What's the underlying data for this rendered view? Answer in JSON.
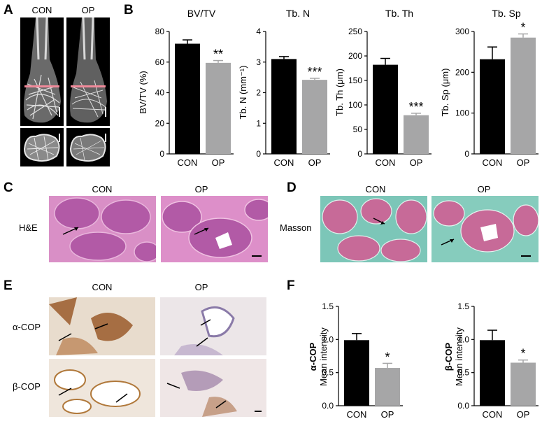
{
  "panels": {
    "A": "A",
    "B": "B",
    "C": "C",
    "D": "D",
    "E": "E",
    "F": "F"
  },
  "panel_a": {
    "col_con": "CON",
    "col_op": "OP"
  },
  "panel_c": {
    "col_con": "CON",
    "col_op": "OP",
    "row": "H&E"
  },
  "panel_d": {
    "col_con": "CON",
    "col_op": "OP",
    "row": "Masson"
  },
  "panel_e": {
    "col_con": "CON",
    "col_op": "OP",
    "row1": "α-COP",
    "row2": "β-COP"
  },
  "colors": {
    "con_bar": "#000000",
    "op_bar": "#a6a6a7",
    "he_pink": "#d98fc6",
    "he_tissue": "#b25aa6",
    "masson_bg": "#7cc6b8",
    "masson_tissue": "#c76a98",
    "ihc_bg": "#ece3d8",
    "ihc_brown": "#9a5a2a",
    "ct_pink_line": "#f08a9a"
  },
  "chart_data": [
    {
      "id": "bvtv",
      "type": "bar",
      "title": "BV/TV",
      "ylabel": "BV/TV (%)",
      "categories": [
        "CON",
        "OP"
      ],
      "values": [
        72,
        59.5
      ],
      "errors": [
        2.5,
        1.5
      ],
      "ylim": [
        0,
        80
      ],
      "yticks": [
        0,
        20,
        40,
        60,
        80
      ],
      "sig": [
        "",
        "**"
      ]
    },
    {
      "id": "tbn",
      "type": "bar",
      "title": "Tb. N",
      "ylabel": "Tb. N (mm⁻¹)",
      "categories": [
        "CON",
        "OP"
      ],
      "values": [
        3.1,
        2.42
      ],
      "errors": [
        0.08,
        0.05
      ],
      "ylim": [
        0,
        4
      ],
      "yticks": [
        0,
        1,
        2,
        3,
        4
      ],
      "sig": [
        "",
        "***"
      ]
    },
    {
      "id": "tbth",
      "type": "bar",
      "title": "Tb. Th",
      "ylabel": "Tb. Th (μm)",
      "categories": [
        "CON",
        "OP"
      ],
      "values": [
        182,
        79
      ],
      "errors": [
        13,
        4
      ],
      "ylim": [
        0,
        250
      ],
      "yticks": [
        0,
        50,
        100,
        150,
        200,
        250
      ],
      "sig": [
        "",
        "***"
      ]
    },
    {
      "id": "tbsp",
      "type": "bar",
      "title": "Tb. Sp",
      "ylabel": "Tb. Sp (μm)",
      "categories": [
        "CON",
        "OP"
      ],
      "values": [
        232,
        285
      ],
      "errors": [
        30,
        9
      ],
      "ylim": [
        0,
        300
      ],
      "yticks": [
        0,
        100,
        200,
        300
      ],
      "sig": [
        "",
        "*"
      ]
    },
    {
      "id": "acop",
      "type": "bar",
      "title": "",
      "ylabel_line1": "α-COP",
      "ylabel_line2": "Mean intensity",
      "categories": [
        "CON",
        "OP"
      ],
      "values": [
        0.99,
        0.57
      ],
      "errors": [
        0.1,
        0.07
      ],
      "ylim": [
        0,
        1.5
      ],
      "yticks": [
        "0.0",
        "0.5",
        "1.0",
        "1.5"
      ],
      "sig": [
        "",
        "*"
      ]
    },
    {
      "id": "bcop",
      "type": "bar",
      "title": "",
      "ylabel_line1": "β-COP",
      "ylabel_line2": "Mean intensity",
      "categories": [
        "CON",
        "OP"
      ],
      "values": [
        0.99,
        0.65
      ],
      "errors": [
        0.15,
        0.04
      ],
      "ylim": [
        0,
        1.5
      ],
      "yticks": [
        "0.0",
        "0.5",
        "1.0",
        "1.5"
      ],
      "sig": [
        "",
        "*"
      ]
    }
  ]
}
